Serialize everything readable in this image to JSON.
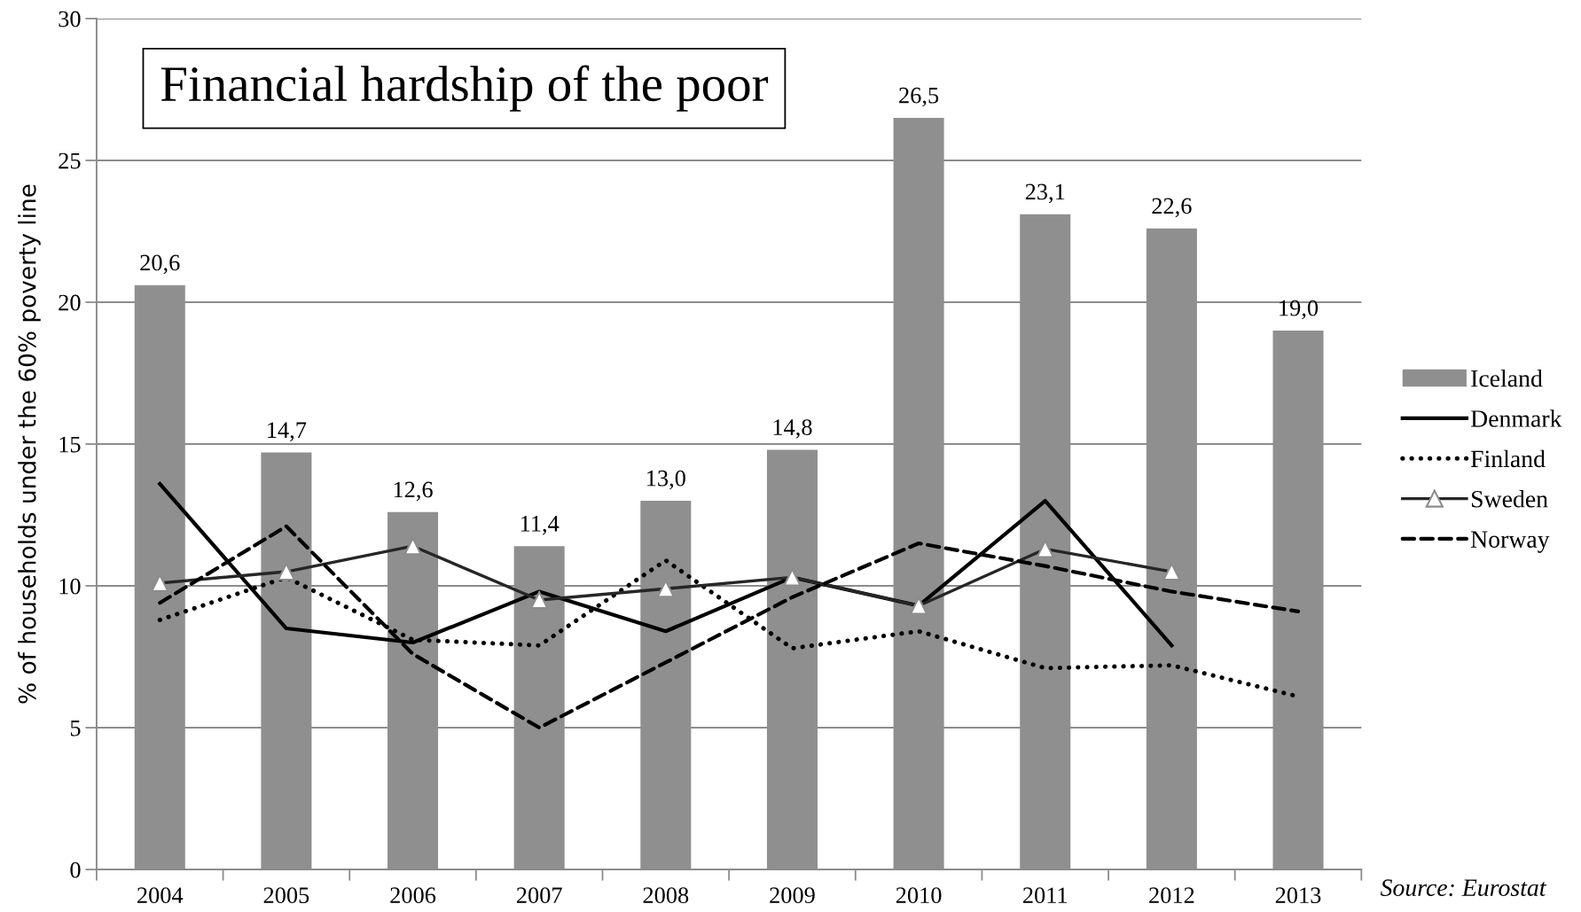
{
  "chart_data": {
    "type": "bar",
    "title": "Financial hardship of the poor",
    "ylabel": "% of households under the 60% poverty line",
    "annotations": [
      "Source: Eurostat"
    ],
    "categories": [
      "2004",
      "2005",
      "2006",
      "2007",
      "2008",
      "2009",
      "2010",
      "2011",
      "2012",
      "2013"
    ],
    "ylim": [
      0,
      30
    ],
    "yticks": [
      0,
      5,
      10,
      15,
      20,
      25,
      30
    ],
    "grid": "y",
    "legend": "right",
    "series": [
      {
        "name": "Iceland",
        "color": "#8f8f8f",
        "values": [
          20.6,
          14.7,
          12.6,
          11.4,
          13.0,
          14.8,
          26.5,
          23.1,
          22.6,
          19.0
        ],
        "value_labels": [
          "20,6",
          "14,7",
          "12,6",
          "11,4",
          "13,0",
          "14,8",
          "26,5",
          "23,1",
          "22,6",
          "19,0"
        ]
      },
      {
        "name": "Denmark",
        "type": "line",
        "color": "#000000",
        "line_style": "solid",
        "values": [
          13.6,
          8.5,
          8.0,
          9.8,
          8.4,
          10.3,
          9.3,
          13.0,
          7.9,
          null
        ]
      },
      {
        "name": "Finland",
        "type": "line",
        "color": "#000000",
        "line_style": "dotted",
        "values": [
          8.8,
          10.3,
          8.1,
          7.9,
          10.9,
          7.8,
          8.4,
          7.1,
          7.2,
          6.1
        ]
      },
      {
        "name": "Sweden",
        "type": "line",
        "color": "#262626",
        "line_style": "solid",
        "marker": "triangle",
        "values": [
          10.1,
          10.5,
          11.4,
          9.5,
          9.9,
          10.3,
          9.3,
          11.3,
          10.5,
          null
        ]
      },
      {
        "name": "Norway",
        "type": "line",
        "color": "#000000",
        "line_style": "dashed",
        "values": [
          9.4,
          12.1,
          7.6,
          5.0,
          7.3,
          9.6,
          11.5,
          10.7,
          9.8,
          9.1
        ]
      }
    ]
  }
}
